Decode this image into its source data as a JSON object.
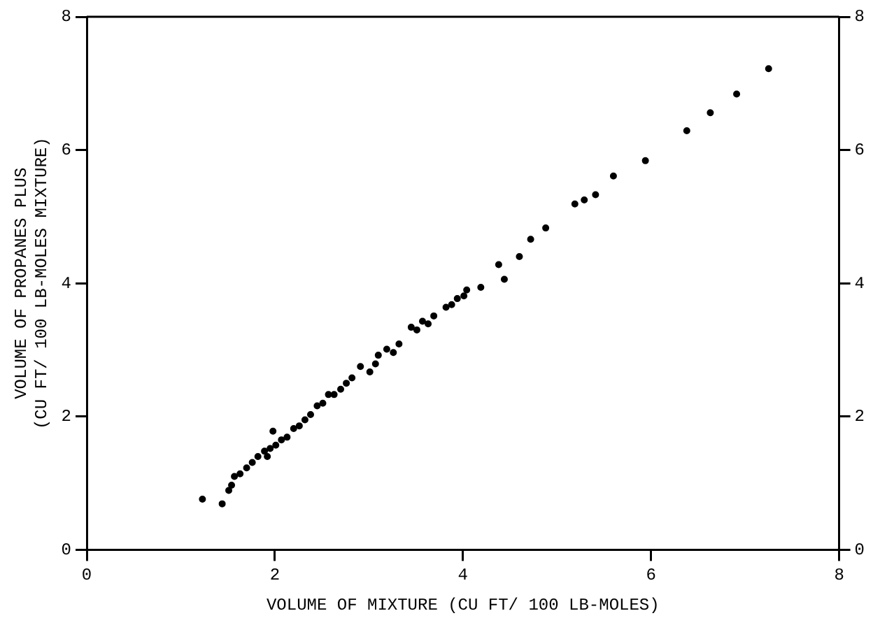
{
  "chart_data": {
    "type": "scatter",
    "xlabel": "VOLUME OF MIXTURE (CU FT/ 100 LB-MOLES)",
    "ylabel": "VOLUME OF PROPANES PLUS\n(CU FT/ 100 LB-MOLES MIXTURE)",
    "xlim": [
      0,
      8
    ],
    "xticks": [
      0,
      2,
      4,
      6,
      8
    ],
    "ylim": [
      0,
      8
    ],
    "yticks": [
      0,
      2,
      4,
      6,
      8
    ],
    "y2lim": [
      0,
      8
    ],
    "y2ticks": [
      0,
      2,
      4,
      6,
      8
    ],
    "grid": false,
    "legend": false,
    "marker": "circle",
    "series": [
      {
        "color": "#000000",
        "x": [
          1.23,
          1.44,
          1.51,
          1.54,
          1.57,
          1.63,
          1.7,
          1.76,
          1.82,
          1.89,
          1.92,
          1.95,
          1.98,
          2.01,
          2.07,
          2.13,
          2.2,
          2.26,
          2.32,
          2.38,
          2.45,
          2.51,
          2.57,
          2.63,
          2.7,
          2.76,
          2.82,
          2.91,
          3.01,
          3.07,
          3.1,
          3.19,
          3.26,
          3.32,
          3.45,
          3.51,
          3.57,
          3.63,
          3.69,
          3.82,
          3.88,
          3.94,
          4.01,
          4.04,
          4.19,
          4.38,
          4.44,
          4.6,
          4.72,
          4.88,
          5.19,
          5.29,
          5.41,
          5.6,
          5.94,
          6.38,
          6.63,
          6.91,
          7.25
        ],
        "values": [
          0.76,
          0.69,
          0.89,
          0.97,
          1.1,
          1.14,
          1.23,
          1.31,
          1.4,
          1.48,
          1.4,
          1.52,
          1.78,
          1.57,
          1.65,
          1.69,
          1.82,
          1.86,
          1.95,
          2.03,
          2.16,
          2.2,
          2.33,
          2.33,
          2.41,
          2.5,
          2.58,
          2.75,
          2.67,
          2.79,
          2.92,
          3.01,
          2.96,
          3.09,
          3.34,
          3.3,
          3.43,
          3.39,
          3.51,
          3.64,
          3.68,
          3.77,
          3.81,
          3.9,
          3.94,
          4.28,
          4.06,
          4.4,
          4.66,
          4.83,
          5.19,
          5.25,
          5.33,
          5.61,
          5.84,
          6.29,
          6.56,
          6.84,
          7.22
        ]
      }
    ]
  }
}
